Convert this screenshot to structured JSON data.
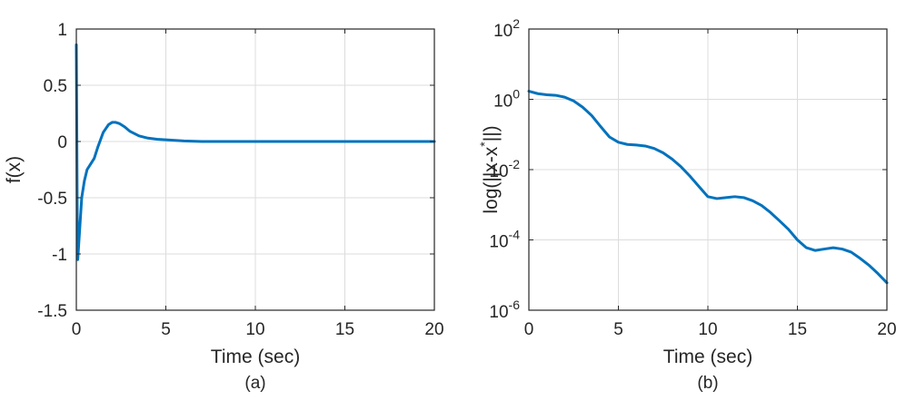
{
  "chart_data": [
    {
      "type": "line",
      "panel": "(a)",
      "xlabel": "Time (sec)",
      "ylabel": "f(x)",
      "xlim": [
        0,
        20
      ],
      "ylim": [
        -1.5,
        1
      ],
      "x_ticks": [
        0,
        5,
        10,
        15,
        20
      ],
      "x_tick_labels": [
        "0",
        "5",
        "10",
        "15",
        "20"
      ],
      "y_ticks": [
        1,
        0.5,
        0,
        -0.5,
        -1,
        -1.5
      ],
      "y_tick_labels": [
        "1",
        "0.5",
        "0",
        "-0.5",
        "-1",
        "-1.5"
      ],
      "y_scale": "linear",
      "grid": true,
      "color": "#0072BD",
      "series": [
        {
          "x": [
            0,
            0.02,
            0.05,
            0.08,
            0.12,
            0.2,
            0.3,
            0.45,
            0.6,
            0.8,
            1.0,
            1.2,
            1.5,
            1.8,
            2.0,
            2.2,
            2.4,
            2.7,
            3.0,
            3.5,
            4.0,
            4.5,
            5.0,
            6.0,
            7.0,
            8.0,
            10.0,
            12.0,
            15.0,
            18.0,
            20.0
          ],
          "y": [
            0.86,
            0.3,
            -0.6,
            -1.05,
            -0.95,
            -0.75,
            -0.5,
            -0.35,
            -0.25,
            -0.2,
            -0.15,
            -0.05,
            0.08,
            0.15,
            0.17,
            0.17,
            0.16,
            0.13,
            0.09,
            0.05,
            0.03,
            0.02,
            0.015,
            0.005,
            0.0,
            0.0,
            0.0,
            0.0,
            0.0,
            0.0,
            0.0
          ]
        }
      ]
    },
    {
      "type": "line",
      "panel": "(b)",
      "xlabel": "Time (sec)",
      "ylabel": "log(||x-x*||)",
      "ylabel_base": "log(||x-x",
      "ylabel_sup": "*",
      "ylabel_tail": "||)",
      "xlim": [
        0,
        20
      ],
      "ylim": [
        1e-06,
        100
      ],
      "x_ticks": [
        0,
        5,
        10,
        15,
        20
      ],
      "x_tick_labels": [
        "0",
        "5",
        "10",
        "15",
        "20"
      ],
      "y_ticks": [
        100,
        1,
        0.01,
        0.0001,
        1e-06
      ],
      "y_tick_base": "10",
      "y_tick_exponents": [
        "2",
        "0",
        "-2",
        "-4",
        "-6"
      ],
      "y_scale": "log",
      "grid": true,
      "color": "#0072BD",
      "series": [
        {
          "x": [
            0,
            0.5,
            1.0,
            1.5,
            2.0,
            2.5,
            3.0,
            3.5,
            4.0,
            4.5,
            5.0,
            5.5,
            6.0,
            6.5,
            7.0,
            7.5,
            8.0,
            8.5,
            9.0,
            9.5,
            10.0,
            10.5,
            11.0,
            11.5,
            12.0,
            12.5,
            13.0,
            13.5,
            14.0,
            14.5,
            15.0,
            15.5,
            16.0,
            16.5,
            17.0,
            17.5,
            18.0,
            18.5,
            19.0,
            19.5,
            20.0
          ],
          "y": [
            1.7,
            1.45,
            1.35,
            1.3,
            1.15,
            0.9,
            0.6,
            0.35,
            0.17,
            0.085,
            0.06,
            0.052,
            0.05,
            0.047,
            0.04,
            0.03,
            0.02,
            0.012,
            0.0065,
            0.0033,
            0.0017,
            0.0015,
            0.0016,
            0.0017,
            0.0016,
            0.0013,
            0.00095,
            0.0006,
            0.00035,
            0.0002,
            0.0001,
            6e-05,
            5e-05,
            5.5e-05,
            6e-05,
            5.5e-05,
            4.5e-05,
            3e-05,
            1.9e-05,
            1.1e-05,
            6e-06
          ]
        }
      ]
    }
  ],
  "captions": [
    "(a)",
    "(b)"
  ]
}
